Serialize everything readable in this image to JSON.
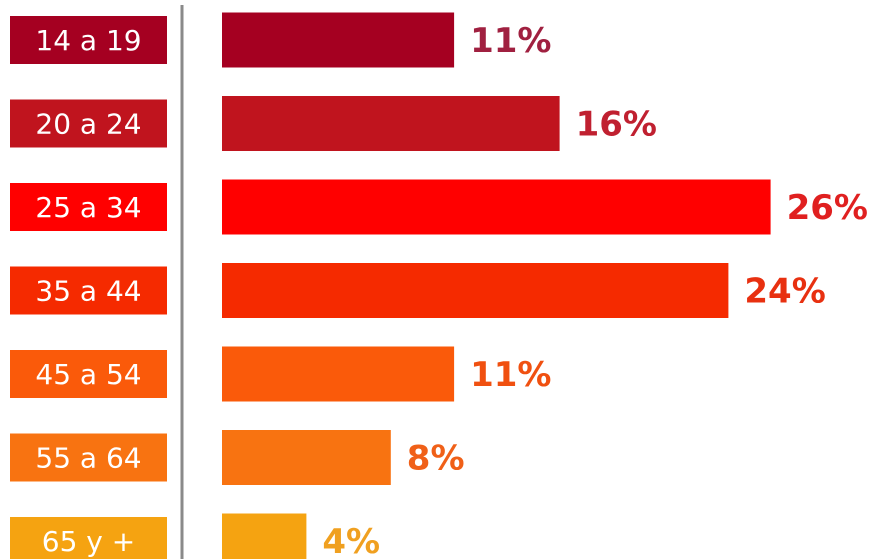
{
  "chart_data": {
    "type": "bar",
    "orientation": "horizontal",
    "categories": [
      "14 a 19",
      "20 a 24",
      "25 a 34",
      "35 a 44",
      "45 a 54",
      "55 a 64",
      "65 y +"
    ],
    "values": [
      11,
      16,
      26,
      24,
      11,
      8,
      4
    ],
    "value_labels": [
      "11%",
      "16%",
      "26%",
      "24%",
      "11%",
      "8%",
      "4%"
    ],
    "unit": "%",
    "colors": [
      "#a50021",
      "#c0141e",
      "#ff0000",
      "#f52a00",
      "#fa5a0a",
      "#f87311",
      "#f5a311"
    ],
    "label_colors": [
      "#a02040",
      "#c02030",
      "#e02020",
      "#e83010",
      "#f05010",
      "#f06018",
      "#f0a020"
    ],
    "title": "",
    "xlabel": "",
    "ylabel": "",
    "grid": false,
    "legend": "none"
  }
}
